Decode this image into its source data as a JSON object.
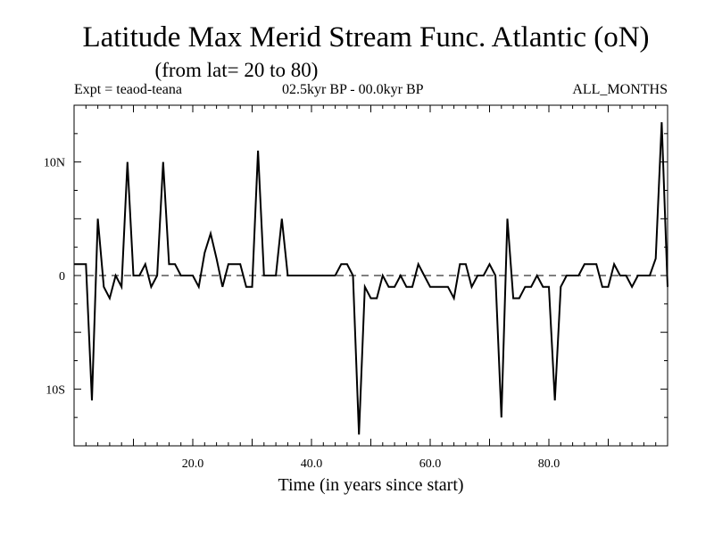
{
  "chart_data": {
    "type": "line",
    "title": "Latitude Max Merid Stream Func. Atlantic (oN)",
    "subtitle": "(from lat= 20 to 80)",
    "header_left": "Expt = teaod-teana",
    "header_center": "02.5kyr BP - 00.0kyr BP",
    "header_right": "ALL_MONTHS",
    "xlabel": "Time (in years since start)",
    "ylabel": "",
    "xlim": [
      0,
      100
    ],
    "ylim": [
      -15,
      15
    ],
    "x_ticks": [
      {
        "value": 20,
        "label": "20.0"
      },
      {
        "value": 40,
        "label": "40.0"
      },
      {
        "value": 60,
        "label": "60.0"
      },
      {
        "value": 80,
        "label": "80.0"
      }
    ],
    "y_ticks": [
      {
        "value": 10,
        "label": "10N"
      },
      {
        "value": 0,
        "label": "0"
      },
      {
        "value": -10,
        "label": "10S"
      }
    ],
    "zero_line": "dashed",
    "series": [
      {
        "name": "teaod-teana",
        "x": [
          0,
          1,
          2,
          3,
          4,
          5,
          6,
          7,
          8,
          9,
          10,
          11,
          12,
          13,
          14,
          15,
          16,
          17,
          18,
          19,
          20,
          21,
          22,
          23,
          24,
          25,
          26,
          27,
          28,
          29,
          30,
          31,
          32,
          33,
          34,
          35,
          36,
          37,
          38,
          39,
          40,
          41,
          42,
          43,
          44,
          45,
          46,
          47,
          48,
          49,
          50,
          51,
          52,
          53,
          54,
          55,
          56,
          57,
          58,
          59,
          60,
          61,
          62,
          63,
          64,
          65,
          66,
          67,
          68,
          69,
          70,
          71,
          72,
          73,
          74,
          75,
          76,
          77,
          78,
          79,
          80,
          81,
          82,
          83,
          84,
          85,
          86,
          87,
          88,
          89,
          90,
          91,
          92,
          93,
          94,
          95,
          96,
          97,
          98,
          99,
          100
        ],
        "values": [
          1,
          1,
          1,
          -11,
          5,
          -1,
          -2,
          0,
          -1,
          10,
          0,
          0,
          1,
          -1,
          0,
          10,
          1,
          1,
          0,
          0,
          0,
          -1,
          2,
          3.7,
          1.5,
          -1,
          1,
          1,
          1,
          -1,
          -1,
          11,
          0,
          0,
          0,
          5,
          0,
          0,
          0,
          0,
          0,
          0,
          0,
          0,
          0,
          1,
          1,
          0,
          -14,
          -1,
          -2,
          -2,
          0,
          -1,
          -1,
          0,
          -1,
          -1,
          1,
          0,
          -1,
          -1,
          -1,
          -1,
          -2,
          1,
          1,
          -1,
          0,
          0,
          1,
          0,
          -12.5,
          5,
          -2,
          -2,
          -1,
          -1,
          0,
          -1,
          -1,
          -11,
          -1,
          0,
          0,
          0,
          1,
          1,
          1,
          -1,
          -1,
          1,
          0,
          0,
          -1,
          0,
          0,
          0,
          1.5,
          13.5,
          -1
        ]
      }
    ]
  }
}
